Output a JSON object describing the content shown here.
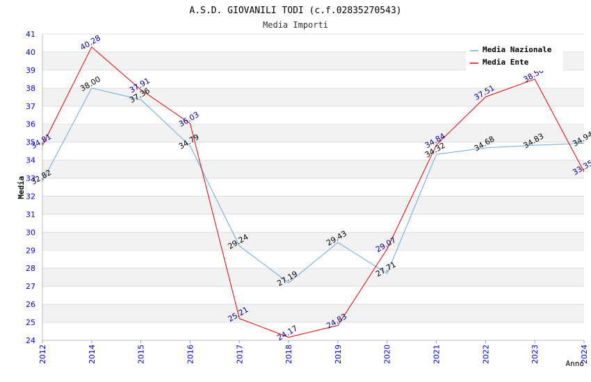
{
  "chart_data": {
    "type": "line",
    "title": "A.S.D. GIOVANILI TODI (c.f.02835270543)",
    "subtitle": "Media Importi",
    "xlabel": "Anno",
    "ylabel": "Media",
    "categories": [
      "2012",
      "2014",
      "2015",
      "2016",
      "2017",
      "2018",
      "2019",
      "2020",
      "2021",
      "2022",
      "2023",
      "2024"
    ],
    "ylim": [
      24,
      41
    ],
    "yticks": [
      "24",
      "25",
      "26",
      "27",
      "28",
      "29",
      "30",
      "31",
      "32",
      "33",
      "34",
      "35",
      "36",
      "37",
      "38",
      "39",
      "40",
      "41"
    ],
    "grid": true,
    "legend_position": "top-right",
    "series": [
      {
        "name": "Media Nazionale",
        "color": "#6aa7e0",
        "label_color": "#000000",
        "values": [
          32.82,
          38.0,
          37.36,
          34.79,
          29.24,
          27.19,
          29.43,
          27.71,
          34.32,
          34.68,
          34.83,
          34.94
        ],
        "labels": [
          "32.82",
          "38.00",
          "37.36",
          "34.79",
          "29.24",
          "27.19",
          "29.43",
          "27.71",
          "34.32",
          "34.68",
          "34.83",
          "34.94"
        ]
      },
      {
        "name": "Media Ente",
        "color": "#dd0000",
        "label_color": "#000088",
        "values": [
          34.81,
          40.28,
          37.91,
          36.03,
          25.21,
          24.17,
          24.83,
          29.07,
          34.84,
          37.51,
          38.5,
          33.35
        ],
        "labels": [
          "34.81",
          "40.28",
          "37.91",
          "36.03",
          "25.21",
          "24.17",
          "24.83",
          "29.07",
          "34.84",
          "37.51",
          "38.50",
          "33.35"
        ]
      }
    ]
  }
}
